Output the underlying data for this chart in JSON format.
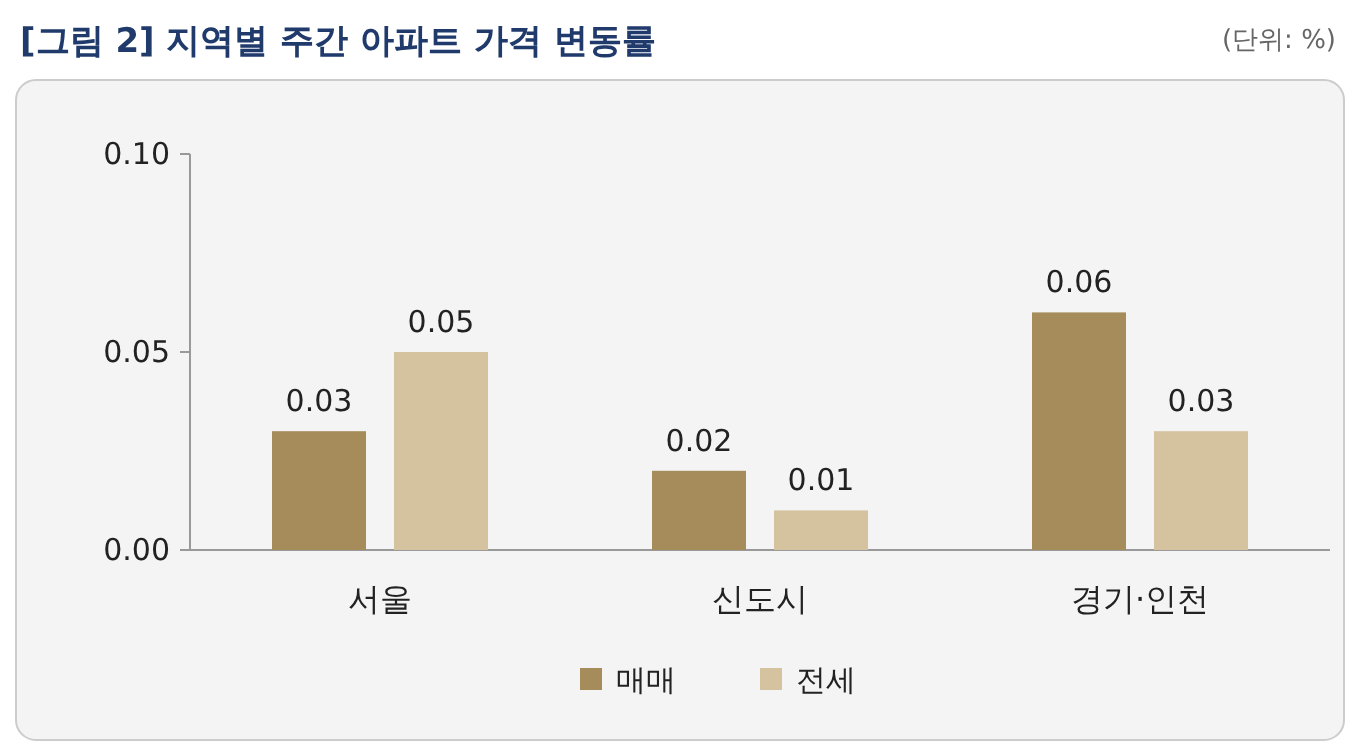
{
  "chart_data": {
    "type": "bar",
    "title": "[그림 2] 지역별 주간 아파트 가격 변동률",
    "annotations": [
      "(단위: %)"
    ],
    "categories": [
      "서울",
      "신도시",
      "경기·인천"
    ],
    "series": [
      {
        "name": "매매",
        "color": "#a68b5b",
        "values": [
          0.03,
          0.02,
          0.06
        ]
      },
      {
        "name": "전세",
        "color": "#d5c3a0",
        "values": [
          0.05,
          0.01,
          0.03
        ]
      }
    ],
    "ylim": [
      0,
      0.1
    ],
    "yticks": [
      {
        "value": 0,
        "label": "0.00"
      },
      {
        "value": 0.05,
        "label": "0.05"
      },
      {
        "value": 0.1,
        "label": "0.10"
      }
    ],
    "data_labels": true,
    "legend": "bottom",
    "grid": false
  }
}
